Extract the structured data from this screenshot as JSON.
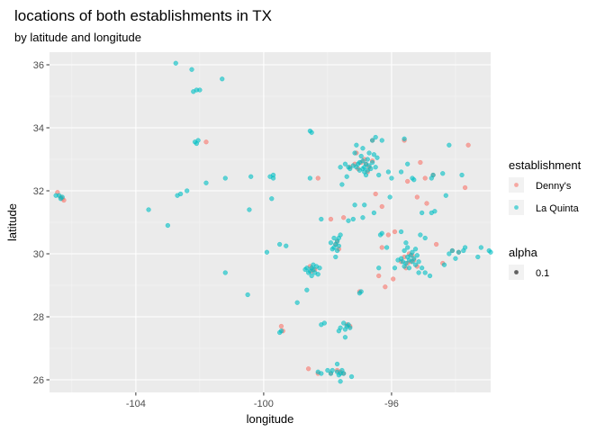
{
  "chart_data": {
    "type": "scatter",
    "title": "locations of both establishments in TX",
    "subtitle": "by latitude and longitude",
    "xlabel": "longitude",
    "ylabel": "latitude",
    "xlim": [
      -106.7,
      -92.9
    ],
    "ylim": [
      25.6,
      36.4
    ],
    "xticks": [
      -104,
      -100,
      -96
    ],
    "xtick_labels": [
      "-104",
      "-100",
      "-96"
    ],
    "yticks": [
      26,
      28,
      30,
      32,
      34,
      36
    ],
    "ytick_labels": [
      "26",
      "28",
      "30",
      "32",
      "34",
      "36"
    ],
    "grid": true,
    "alpha": 0.6,
    "legend": {
      "title": "establishment",
      "position": "right",
      "entries": [
        {
          "label": "Denny's",
          "color": "#F8766D"
        },
        {
          "label": "La Quinta",
          "color": "#00BFC4"
        }
      ]
    },
    "alpha_legend": {
      "title": "alpha",
      "label": "0.1"
    },
    "series": [
      {
        "name": "Denny's",
        "color": "#F8766D",
        "points": [
          [
            -106.45,
            31.95
          ],
          [
            -106.35,
            31.8
          ],
          [
            -106.25,
            31.7
          ],
          [
            -106.3,
            31.75
          ],
          [
            -96.95,
            32.9
          ],
          [
            -96.8,
            32.85
          ],
          [
            -96.7,
            32.75
          ],
          [
            -97.05,
            32.7
          ],
          [
            -96.6,
            32.95
          ],
          [
            -97.3,
            32.75
          ],
          [
            -96.85,
            33.0
          ],
          [
            -96.75,
            32.6
          ],
          [
            -97.15,
            32.85
          ],
          [
            -95.4,
            29.75
          ],
          [
            -95.5,
            29.7
          ],
          [
            -95.3,
            29.8
          ],
          [
            -95.6,
            29.9
          ],
          [
            -95.2,
            29.6
          ],
          [
            -95.45,
            30.0
          ],
          [
            -95.55,
            29.55
          ],
          [
            -95.35,
            29.95
          ],
          [
            -95.7,
            29.75
          ],
          [
            -98.5,
            29.45
          ],
          [
            -98.4,
            29.5
          ],
          [
            -98.55,
            29.6
          ],
          [
            -97.75,
            30.3
          ],
          [
            -97.7,
            30.4
          ],
          [
            -97.65,
            30.15
          ],
          [
            -97.5,
            26.2
          ],
          [
            -97.6,
            26.25
          ],
          [
            -97.7,
            26.3
          ],
          [
            -98.3,
            26.2
          ],
          [
            -98.6,
            26.35
          ],
          [
            -97.4,
            27.75
          ],
          [
            -97.3,
            27.7
          ],
          [
            -99.4,
            27.55
          ],
          [
            -99.45,
            27.7
          ],
          [
            -96.1,
            30.6
          ],
          [
            -95.9,
            30.7
          ],
          [
            -96.3,
            30.2
          ],
          [
            -94.6,
            30.3
          ],
          [
            -94.4,
            29.7
          ],
          [
            -94.1,
            30.1
          ],
          [
            -93.9,
            30.05
          ],
          [
            -95.2,
            31.8
          ],
          [
            -94.7,
            32.5
          ],
          [
            -94.95,
            32.4
          ],
          [
            -93.6,
            33.45
          ],
          [
            -95.5,
            32.3
          ],
          [
            -94.9,
            31.6
          ],
          [
            -93.7,
            32.1
          ],
          [
            -95.1,
            32.9
          ],
          [
            -96.3,
            31.5
          ],
          [
            -96.5,
            31.9
          ],
          [
            -95.6,
            33.6
          ],
          [
            -96.6,
            33.6
          ],
          [
            -97.1,
            33.2
          ],
          [
            -98.3,
            32.4
          ],
          [
            -97.9,
            31.1
          ],
          [
            -97.5,
            31.15
          ],
          [
            -96.2,
            28.95
          ],
          [
            -96.4,
            29.3
          ],
          [
            -97.0,
            28.8
          ],
          [
            -95.95,
            29.2
          ],
          [
            -97.9,
            26.2
          ],
          [
            -101.8,
            33.55
          ]
        ]
      },
      {
        "name": "La Quinta",
        "color": "#00BFC4",
        "points": [
          [
            -106.5,
            31.85
          ],
          [
            -106.4,
            31.85
          ],
          [
            -106.35,
            31.75
          ],
          [
            -106.3,
            31.8
          ],
          [
            -102.75,
            36.05
          ],
          [
            -102.25,
            35.85
          ],
          [
            -102.1,
            35.2
          ],
          [
            -102.0,
            35.2
          ],
          [
            -102.2,
            35.15
          ],
          [
            -101.3,
            35.55
          ],
          [
            -102.15,
            33.55
          ],
          [
            -102.05,
            33.6
          ],
          [
            -102.1,
            33.5
          ],
          [
            -101.8,
            32.25
          ],
          [
            -102.4,
            32.0
          ],
          [
            -102.6,
            31.9
          ],
          [
            -102.7,
            31.85
          ],
          [
            -101.2,
            32.4
          ],
          [
            -100.4,
            32.45
          ],
          [
            -100.45,
            31.4
          ],
          [
            -101.2,
            29.4
          ],
          [
            -100.5,
            28.7
          ],
          [
            -103.6,
            31.4
          ],
          [
            -103.0,
            30.9
          ],
          [
            -99.8,
            32.45
          ],
          [
            -99.7,
            32.5
          ],
          [
            -99.7,
            32.4
          ],
          [
            -98.55,
            33.9
          ],
          [
            -98.5,
            33.85
          ],
          [
            -99.75,
            31.75
          ],
          [
            -98.55,
            32.4
          ],
          [
            -98.2,
            31.1
          ],
          [
            -99.9,
            30.05
          ],
          [
            -99.5,
            30.3
          ],
          [
            -99.3,
            30.25
          ],
          [
            -98.55,
            29.45
          ],
          [
            -98.45,
            29.5
          ],
          [
            -98.5,
            29.55
          ],
          [
            -98.4,
            29.4
          ],
          [
            -98.6,
            29.4
          ],
          [
            -98.35,
            29.6
          ],
          [
            -98.65,
            29.55
          ],
          [
            -98.3,
            29.35
          ],
          [
            -98.7,
            29.5
          ],
          [
            -98.5,
            29.3
          ],
          [
            -98.45,
            29.65
          ],
          [
            -98.25,
            29.55
          ],
          [
            -97.75,
            30.3
          ],
          [
            -97.7,
            30.4
          ],
          [
            -97.8,
            30.2
          ],
          [
            -97.65,
            30.5
          ],
          [
            -97.7,
            30.1
          ],
          [
            -97.75,
            29.9
          ],
          [
            -97.8,
            30.5
          ],
          [
            -97.65,
            30.25
          ],
          [
            -97.6,
            30.6
          ],
          [
            -97.9,
            30.35
          ],
          [
            -97.85,
            30.15
          ],
          [
            -97.1,
            32.75
          ],
          [
            -97.2,
            32.8
          ],
          [
            -97.0,
            32.9
          ],
          [
            -96.9,
            32.7
          ],
          [
            -96.8,
            32.85
          ],
          [
            -96.7,
            32.8
          ],
          [
            -96.6,
            32.9
          ],
          [
            -96.75,
            33.0
          ],
          [
            -96.9,
            32.95
          ],
          [
            -97.05,
            32.85
          ],
          [
            -96.85,
            32.6
          ],
          [
            -96.65,
            32.7
          ],
          [
            -97.3,
            32.7
          ],
          [
            -97.35,
            32.75
          ],
          [
            -96.95,
            33.1
          ],
          [
            -96.55,
            33.15
          ],
          [
            -96.7,
            33.2
          ],
          [
            -97.15,
            33.2
          ],
          [
            -96.5,
            32.75
          ],
          [
            -96.8,
            32.5
          ],
          [
            -97.45,
            32.85
          ],
          [
            -96.85,
            32.75
          ],
          [
            -96.75,
            32.65
          ],
          [
            -97.0,
            32.65
          ],
          [
            -96.4,
            32.5
          ],
          [
            -97.4,
            32.45
          ],
          [
            -97.6,
            32.75
          ],
          [
            -97.55,
            32.2
          ],
          [
            -96.9,
            33.35
          ],
          [
            -96.3,
            33.6
          ],
          [
            -96.5,
            33.7
          ],
          [
            -96.6,
            33.6
          ],
          [
            -96.45,
            33.05
          ],
          [
            -96.1,
            32.6
          ],
          [
            -96.0,
            32.4
          ],
          [
            -97.1,
            33.45
          ],
          [
            -95.35,
            29.75
          ],
          [
            -95.45,
            29.8
          ],
          [
            -95.55,
            29.7
          ],
          [
            -95.4,
            29.95
          ],
          [
            -95.25,
            29.65
          ],
          [
            -95.6,
            29.6
          ],
          [
            -95.5,
            29.9
          ],
          [
            -95.3,
            29.85
          ],
          [
            -95.65,
            29.75
          ],
          [
            -95.15,
            29.75
          ],
          [
            -95.45,
            29.55
          ],
          [
            -95.7,
            29.85
          ],
          [
            -95.2,
            29.95
          ],
          [
            -95.35,
            30.05
          ],
          [
            -95.5,
            30.2
          ],
          [
            -95.6,
            30.1
          ],
          [
            -95.05,
            29.55
          ],
          [
            -95.8,
            29.8
          ],
          [
            -95.25,
            30.15
          ],
          [
            -95.55,
            30.35
          ],
          [
            -95.15,
            29.4
          ],
          [
            -94.95,
            29.4
          ],
          [
            -95.9,
            29.55
          ],
          [
            -94.8,
            29.3
          ],
          [
            -94.1,
            30.1
          ],
          [
            -93.9,
            30.05
          ],
          [
            -93.75,
            30.1
          ],
          [
            -93.7,
            30.2
          ],
          [
            -94.2,
            30.0
          ],
          [
            -94.7,
            32.5
          ],
          [
            -94.75,
            32.4
          ],
          [
            -94.4,
            32.55
          ],
          [
            -93.8,
            32.5
          ],
          [
            -95.3,
            32.35
          ],
          [
            -95.35,
            32.4
          ],
          [
            -95.05,
            31.3
          ],
          [
            -94.75,
            31.3
          ],
          [
            -94.65,
            31.35
          ],
          [
            -94.3,
            31.85
          ],
          [
            -96.05,
            31.8
          ],
          [
            -94.2,
            33.45
          ],
          [
            -95.6,
            33.65
          ],
          [
            -95.5,
            32.85
          ],
          [
            -95.7,
            32.6
          ],
          [
            -96.35,
            30.6
          ],
          [
            -96.3,
            30.65
          ],
          [
            -96.85,
            31.55
          ],
          [
            -97.15,
            31.55
          ],
          [
            -97.2,
            31.1
          ],
          [
            -97.35,
            31.05
          ],
          [
            -96.9,
            31.15
          ],
          [
            -96.55,
            31.3
          ],
          [
            -96.15,
            30.2
          ],
          [
            -96.4,
            29.55
          ],
          [
            -96.95,
            28.8
          ],
          [
            -97.0,
            28.75
          ],
          [
            -97.5,
            27.8
          ],
          [
            -97.4,
            27.7
          ],
          [
            -97.35,
            27.75
          ],
          [
            -97.3,
            27.65
          ],
          [
            -97.45,
            27.6
          ],
          [
            -97.6,
            27.65
          ],
          [
            -98.2,
            27.75
          ],
          [
            -98.1,
            27.8
          ],
          [
            -97.65,
            27.55
          ],
          [
            -97.45,
            27.35
          ],
          [
            -98.95,
            28.45
          ],
          [
            -99.5,
            27.5
          ],
          [
            -99.45,
            27.55
          ],
          [
            -98.65,
            28.85
          ],
          [
            -97.5,
            26.2
          ],
          [
            -97.6,
            26.2
          ],
          [
            -97.7,
            26.25
          ],
          [
            -98.2,
            26.2
          ],
          [
            -98.3,
            26.25
          ],
          [
            -98.0,
            26.3
          ],
          [
            -97.9,
            26.2
          ],
          [
            -97.25,
            26.1
          ],
          [
            -97.6,
            25.95
          ],
          [
            -97.7,
            26.5
          ],
          [
            -97.85,
            26.3
          ],
          [
            -97.65,
            26.15
          ],
          [
            -97.55,
            26.3
          ],
          [
            -93.2,
            30.2
          ],
          [
            -92.95,
            30.1
          ],
          [
            -92.9,
            30.05
          ],
          [
            -93.3,
            29.9
          ],
          [
            -94.0,
            29.85
          ],
          [
            -94.35,
            29.65
          ],
          [
            -95.1,
            30.6
          ],
          [
            -94.95,
            30.5
          ],
          [
            -95.7,
            30.7
          ]
        ]
      }
    ]
  }
}
